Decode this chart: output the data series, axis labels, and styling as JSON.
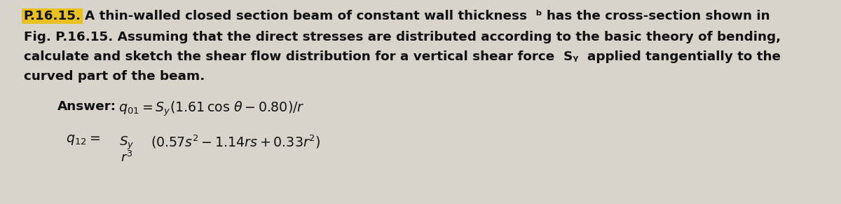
{
  "background_color": "#d8d4cc",
  "highlight_color": "#e8c020",
  "text_color": "#111111",
  "fig_width": 12.0,
  "fig_height": 2.91,
  "dpi": 100,
  "problem_label": "P.16.15.",
  "line1_suffix": "A thin-walled closed section beam of constant wall thickness  ᵇ has the cross-section shown in",
  "line2": "Fig. P.16.15. Assuming that the direct stresses are distributed according to the basic theory of bending,",
  "line3": "calculate and sketch the shear flow distribution for a vertical shear force  Sᵧ  applied tangentially to the",
  "line4": "curved part of the beam.",
  "answer_word": "Answer:",
  "eq1": "q₀₁ = Sᵧ(1.61 cos θ – 0.80)/r",
  "eq2_pre": "q₁₂ =",
  "eq2_num": "Sᵧ",
  "eq2_den": "r³",
  "eq2_post": "(0.57s² – 1.14rs + 0.33r²)"
}
